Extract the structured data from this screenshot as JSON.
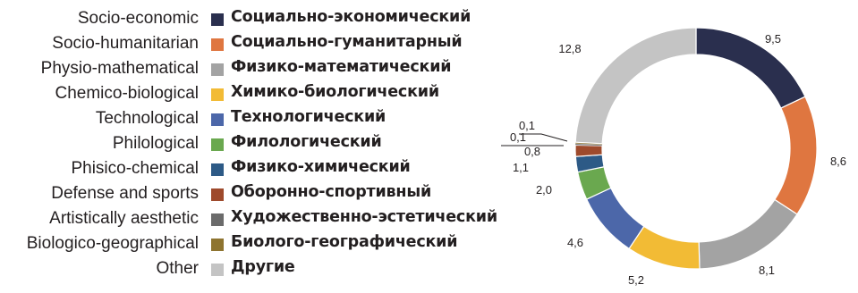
{
  "legend": [
    {
      "en": "Socio-economic",
      "ru": "Социально-экономический",
      "color": "#2a2f4e"
    },
    {
      "en": "Socio-humanitarian",
      "ru": "Социально-гуманитарный",
      "color": "#df7640"
    },
    {
      "en": "Physio-mathematical",
      "ru": "Физико-математический",
      "color": "#a3a3a3"
    },
    {
      "en": "Chemico-biological",
      "ru": "Химико-биологический",
      "color": "#f2bb35"
    },
    {
      "en": "Technological",
      "ru": "Технологический",
      "color": "#4c67a9"
    },
    {
      "en": "Philological",
      "ru": "Филологический",
      "color": "#6aa84f"
    },
    {
      "en": "Phisico-chemical",
      "ru": "Физико-химический",
      "color": "#2d5a86"
    },
    {
      "en": "Defense and sports",
      "ru": "Оборонно-спортивный",
      "color": "#9e4a2c"
    },
    {
      "en": "Artistically aesthetic",
      "ru": "Художественно-эстетический",
      "color": "#6b6b6b"
    },
    {
      "en": "Biologico-geographical",
      "ru": "Биолого-географический",
      "color": "#8e7430"
    },
    {
      "en": "Other",
      "ru": "Другие",
      "color": "#c4c4c4"
    }
  ],
  "chart_data": {
    "type": "pie",
    "variant": "donut",
    "categories": [
      "Socio-economic",
      "Socio-humanitarian",
      "Physio-mathematical",
      "Chemico-biological",
      "Technological",
      "Philological",
      "Phisico-chemical",
      "Defense and sports",
      "Artistically aesthetic",
      "Biologico-geographical",
      "Other"
    ],
    "values": [
      9.5,
      8.6,
      8.1,
      5.2,
      4.6,
      2.0,
      1.1,
      0.8,
      0.1,
      0.1,
      12.8
    ],
    "value_labels": [
      "9,5",
      "8,6",
      "8,1",
      "5,2",
      "4,6",
      "2,0",
      "1,1",
      "0,8",
      "0,1",
      "0,1",
      "12,8"
    ],
    "colors": [
      "#2a2f4e",
      "#df7640",
      "#a3a3a3",
      "#f2bb35",
      "#4c67a9",
      "#6aa84f",
      "#2d5a86",
      "#9e4a2c",
      "#6b6b6b",
      "#8e7430",
      "#c4c4c4"
    ],
    "title": "",
    "legend_position": "left"
  }
}
